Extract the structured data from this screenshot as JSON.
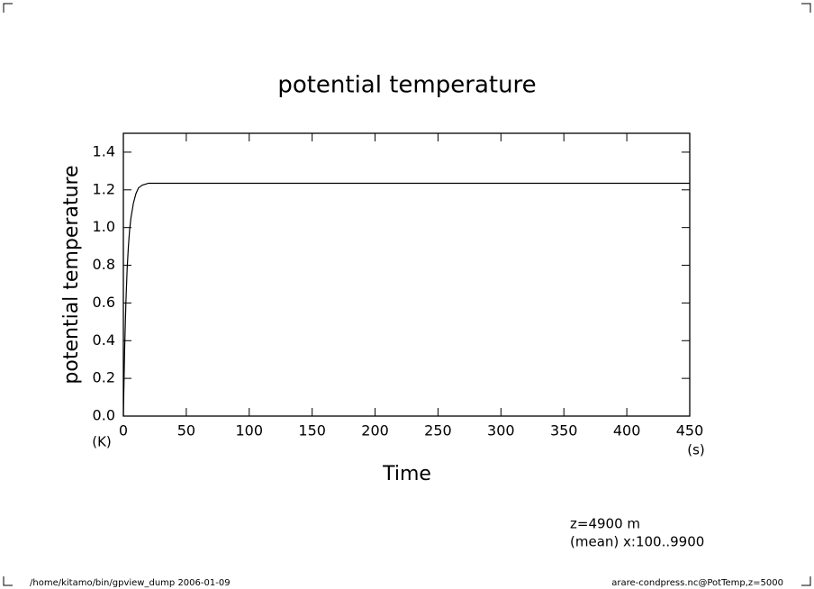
{
  "chart_data": {
    "type": "line",
    "title": "potential temperature",
    "y_label": "potential temperature",
    "x_label": "Time",
    "y_unit": "(K)",
    "x_unit": "(s)",
    "annotations": [
      "z=4900  m",
      "(mean) x:100..9900"
    ],
    "footer_left": "/home/kitamo/bin/gpview_dump  2006-01-09",
    "footer_right": "arare-condpress.nc@PotTemp,z=5000",
    "x": [
      0,
      1,
      2,
      3,
      4,
      5,
      6,
      8,
      10,
      12,
      15,
      20,
      30,
      450
    ],
    "series": [
      {
        "color": "#000000",
        "values": [
          0,
          0.35,
          0.6,
          0.78,
          0.9,
          0.99,
          1.05,
          1.13,
          1.18,
          1.21,
          1.225,
          1.235,
          1.235,
          1.235
        ]
      }
    ],
    "xlim": [
      0,
      450
    ],
    "xticks": [
      0,
      50,
      100,
      150,
      200,
      250,
      300,
      350,
      400,
      450
    ],
    "ylim": [
      0,
      1.5
    ],
    "yticks": [
      {
        "value": 0,
        "label": "0.0"
      },
      0.2,
      0.4,
      0.6,
      0.8,
      {
        "value": 1,
        "label": "1.0"
      },
      1.2,
      1.4
    ],
    "grid": false
  }
}
